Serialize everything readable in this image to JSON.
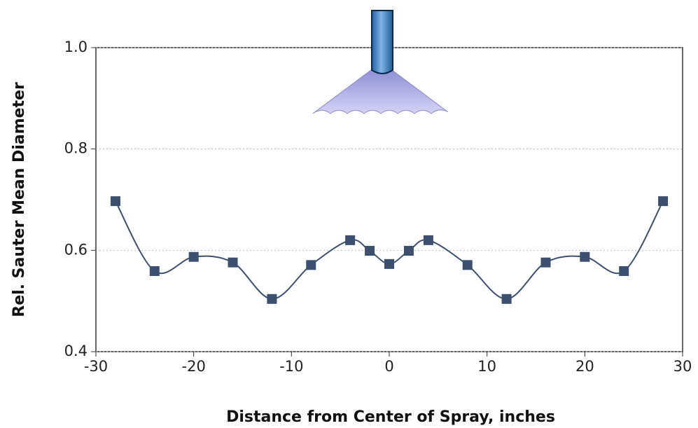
{
  "chart_data": {
    "type": "line",
    "xlabel": "Distance from Center of Spray, inches",
    "ylabel": "Rel. Sauter Mean Diameter",
    "x": [
      -28,
      -24,
      -20,
      -16,
      -12,
      -8,
      -4,
      -2,
      0,
      2,
      4,
      8,
      12,
      16,
      20,
      24,
      28
    ],
    "series": [
      {
        "color": "#3d4f6e",
        "values": [
          0.697,
          0.559,
          0.587,
          0.576,
          0.504,
          0.571,
          0.62,
          0.599,
          0.573,
          0.599,
          0.62,
          0.571,
          0.504,
          0.576,
          0.587,
          0.559,
          0.697
        ]
      }
    ],
    "xlim": [
      -30,
      30
    ],
    "ylim": [
      0.4,
      1.0
    ],
    "xticks": [
      -30,
      -20,
      -10,
      0,
      10,
      20,
      30
    ],
    "yticks": [
      0.4,
      0.6,
      0.8,
      {
        "value": 1.0,
        "label": "1.0"
      }
    ],
    "grid": true
  }
}
